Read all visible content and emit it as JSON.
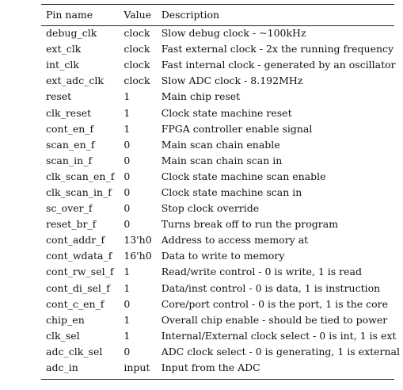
{
  "table": {
    "headers": [
      "Pin name",
      "Value",
      "Description"
    ],
    "rows": [
      {
        "pin": "debug_clk",
        "value": "clock",
        "description": "Slow debug clock - ~100kHz"
      },
      {
        "pin": "ext_clk",
        "value": "clock",
        "description": "Fast external clock - 2x the running frequency"
      },
      {
        "pin": "int_clk",
        "value": "clock",
        "description": "Fast internal clock - generated by an oscillator"
      },
      {
        "pin": "ext_adc_clk",
        "value": "clock",
        "description": "Slow ADC clock - 8.192MHz"
      },
      {
        "pin": "reset",
        "value": "1",
        "description": "Main chip reset"
      },
      {
        "pin": "clk_reset",
        "value": "1",
        "description": "Clock state machine reset"
      },
      {
        "pin": "cont_en_f",
        "value": "1",
        "description": "FPGA controller enable signal"
      },
      {
        "pin": "scan_en_f",
        "value": "0",
        "description": "Main scan chain enable"
      },
      {
        "pin": "scan_in_f",
        "value": "0",
        "description": "Main scan chain scan in"
      },
      {
        "pin": "clk_scan_en_f",
        "value": "0",
        "description": "Clock state machine scan enable"
      },
      {
        "pin": "clk_scan_in_f",
        "value": "0",
        "description": "Clock state machine scan in"
      },
      {
        "pin": "sc_over_f",
        "value": "0",
        "description": "Stop clock override"
      },
      {
        "pin": "reset_br_f",
        "value": "0",
        "description": "Turns break off to run the program"
      },
      {
        "pin": "cont_addr_f",
        "value": "13'h0",
        "description": "Address to access memory at"
      },
      {
        "pin": "cont_wdata_f",
        "value": "16'h0",
        "description": "Data to write to memory"
      },
      {
        "pin": "cont_rw_sel_f",
        "value": "1",
        "description": "Read/write control - 0 is write, 1 is read"
      },
      {
        "pin": "cont_di_sel_f",
        "value": "1",
        "description": "Data/inst control - 0 is data, 1 is instruction"
      },
      {
        "pin": "cont_c_en_f",
        "value": "0",
        "description": "Core/port control - 0 is the port, 1 is the core"
      },
      {
        "pin": "chip_en",
        "value": "1",
        "description": "Overall chip enable - should be tied to power"
      },
      {
        "pin": "clk_sel",
        "value": "1",
        "description": "Internal/External clock select - 0 is int, 1 is ext"
      },
      {
        "pin": "adc_clk_sel",
        "value": "0",
        "description": "ADC clock select - 0 is generating, 1 is external"
      },
      {
        "pin": "adc_in",
        "value": "input",
        "description": "Input from the ADC"
      }
    ]
  }
}
